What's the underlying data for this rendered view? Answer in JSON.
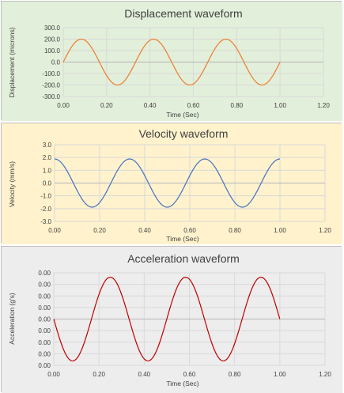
{
  "colors": {
    "panel_1_bg": "#e2efda",
    "panel_2_bg": "#fff2cc",
    "panel_3_bg": "#ededed",
    "grid": "#d9d9d9",
    "axis": "#bfbfbf",
    "displacement_line": "#ed7d31",
    "velocity_line": "#4472c4",
    "acceleration_line": "#c00000"
  },
  "chart_data": [
    {
      "type": "line",
      "title": "Displacement waveform",
      "xlabel": "Time (Sec)",
      "ylabel": "Displacement (microns)",
      "xlim": [
        0,
        1.2
      ],
      "ylim": [
        -300,
        300
      ],
      "x_ticks": [
        "0.00",
        "0.20",
        "0.40",
        "0.60",
        "0.80",
        "1.00",
        "1.20"
      ],
      "y_ticks": [
        "300.0",
        "200.0",
        "100.0",
        "0.0",
        "-100.0",
        "-200.0",
        "-300.0"
      ],
      "grid": true,
      "legend": "none",
      "series": [
        {
          "function": "sine",
          "amplitude": 200,
          "frequency_hz": 3,
          "phase": "sin",
          "x_start": 0,
          "x_end": 1.0
        }
      ]
    },
    {
      "type": "line",
      "title": "Velocity waveform",
      "xlabel": "Time (Sec)",
      "ylabel": "Velocity (mm/s)",
      "xlim": [
        0,
        1.2
      ],
      "ylim": [
        -3,
        3
      ],
      "x_ticks": [
        "0.00",
        "0.20",
        "0.40",
        "0.60",
        "0.80",
        "1.00",
        "1.20"
      ],
      "y_ticks": [
        "3.0",
        "2.0",
        "1.0",
        "0.0",
        "-1.0",
        "-2.0",
        "-3.0"
      ],
      "grid": true,
      "legend": "none",
      "series": [
        {
          "function": "cosine",
          "amplitude": 1.885,
          "frequency_hz": 3,
          "phase": "cos",
          "x_start": 0,
          "x_end": 1.0
        }
      ]
    },
    {
      "type": "line",
      "title": "Acceleration waveform",
      "xlabel": "Time (Sec)",
      "ylabel": "Acceleration (g's)",
      "xlim": [
        0,
        1.2
      ],
      "ylim": [
        -0.08,
        0.08
      ],
      "x_ticks": [
        "0.00",
        "0.20",
        "0.40",
        "0.60",
        "0.80",
        "1.00",
        "1.20"
      ],
      "y_ticks": [
        "0.00",
        "0.00",
        "0.00",
        "0.00",
        "0.00",
        "0.00",
        "0.00",
        "0.00",
        "0.00"
      ],
      "grid": true,
      "legend": "none",
      "series": [
        {
          "function": "negative-sine",
          "amplitude": 0.0724,
          "frequency_hz": 3,
          "phase": "-sin",
          "x_start": 0,
          "x_end": 1.0
        }
      ]
    }
  ]
}
